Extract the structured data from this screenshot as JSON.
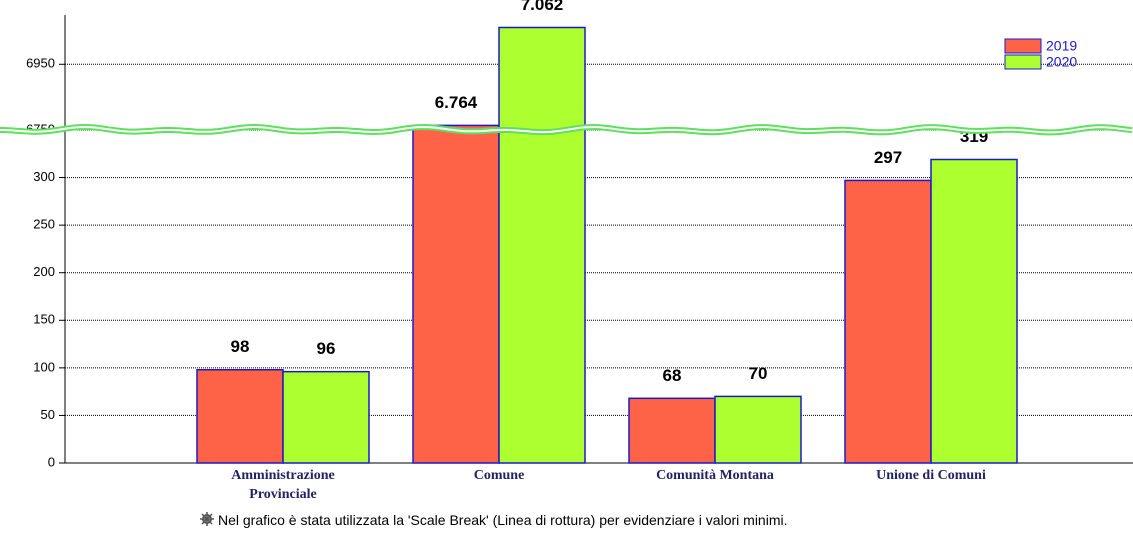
{
  "chart_data": {
    "type": "bar",
    "categories": [
      "Amministrazione Provinciale",
      "Comune",
      "Comunità Montana",
      "Unione di Comuni"
    ],
    "series": [
      {
        "name": "2019",
        "color": "#ff6347",
        "values": [
          98,
          6764,
          68,
          297
        ],
        "value_labels": [
          "98",
          "6.764",
          "68",
          "297"
        ]
      },
      {
        "name": "2020",
        "color": "#adff2f",
        "values": [
          96,
          7062,
          70,
          319
        ],
        "value_labels": [
          "96",
          "7.062",
          "70",
          "319"
        ]
      }
    ],
    "ylim": [
      0,
      7100
    ],
    "scale_break": [
      350,
      6750
    ],
    "yticks": [
      0,
      50,
      100,
      150,
      200,
      250,
      300,
      6750,
      6950
    ],
    "grid": true,
    "legend": "top-right",
    "note": "Nel grafico è stata utilizzata la 'Scale Break' (Linea di rottura) per evidenziare i valori minimi."
  }
}
